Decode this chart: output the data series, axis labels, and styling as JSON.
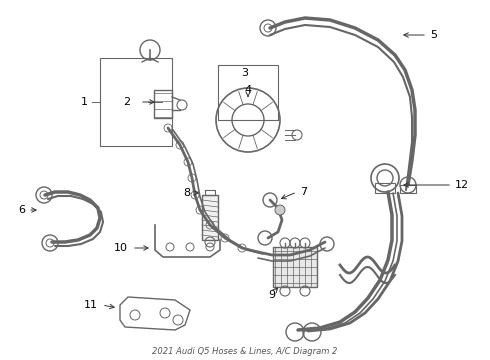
{
  "bg_color": "#ffffff",
  "line_color": "#666666",
  "label_color": "#000000",
  "font_size": 8,
  "dpi": 100,
  "fig_w": 4.9,
  "fig_h": 3.6,
  "title": "2021 Audi Q5 Hoses & Lines, A/C Diagram 2"
}
